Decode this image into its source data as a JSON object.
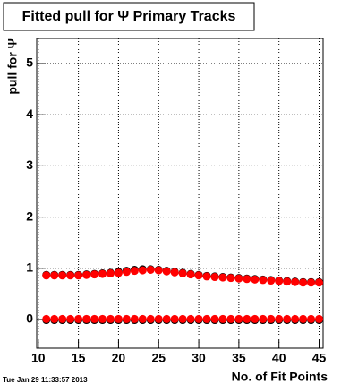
{
  "chart_data": {
    "type": "scatter",
    "title": "Fitted pull for  Ψ  Primary Tracks",
    "y_label": "pull for Ψ",
    "x_label": "No. of Fit Points",
    "footer": "Tue Jan 29 11:33:57 2013",
    "x": [
      11,
      12,
      13,
      14,
      15,
      16,
      17,
      18,
      19,
      20,
      21,
      22,
      23,
      24,
      25,
      26,
      27,
      28,
      29,
      30,
      31,
      32,
      33,
      34,
      35,
      36,
      37,
      38,
      39,
      40,
      41,
      42,
      43,
      44,
      45
    ],
    "series": [
      {
        "color": "#000000",
        "values": [
          0.87,
          0.87,
          0.87,
          0.87,
          0.87,
          0.88,
          0.89,
          0.9,
          0.91,
          0.93,
          0.95,
          0.97,
          0.98,
          0.98,
          0.97,
          0.95,
          0.93,
          0.91,
          0.89,
          0.87,
          0.85,
          0.84,
          0.83,
          0.82,
          0.81,
          0.8,
          0.79,
          0.78,
          0.77,
          0.76,
          0.75,
          0.74,
          0.73,
          0.73,
          0.73
        ]
      },
      {
        "color": "#ff0000",
        "values": [
          0.86,
          0.86,
          0.86,
          0.86,
          0.86,
          0.87,
          0.88,
          0.89,
          0.9,
          0.91,
          0.93,
          0.95,
          0.96,
          0.97,
          0.96,
          0.94,
          0.92,
          0.9,
          0.88,
          0.86,
          0.84,
          0.83,
          0.82,
          0.81,
          0.8,
          0.79,
          0.78,
          0.77,
          0.76,
          0.75,
          0.74,
          0.73,
          0.72,
          0.72,
          0.72
        ]
      },
      {
        "color": "#000000",
        "values": [
          -0.01,
          -0.01,
          -0.01,
          -0.01,
          -0.01,
          -0.01,
          -0.01,
          -0.01,
          -0.01,
          -0.01,
          -0.01,
          -0.01,
          -0.01,
          -0.01,
          -0.01,
          -0.01,
          -0.01,
          -0.01,
          -0.01,
          -0.01,
          -0.01,
          -0.01,
          -0.01,
          -0.01,
          -0.01,
          -0.01,
          -0.01,
          -0.01,
          -0.01,
          -0.01,
          -0.01,
          -0.01,
          -0.01,
          -0.01,
          -0.01
        ]
      },
      {
        "color": "#ff0000",
        "values": [
          0.01,
          0.01,
          0.01,
          0.01,
          0.01,
          0.01,
          0.01,
          0.01,
          0.01,
          0.01,
          0.01,
          0.01,
          0.01,
          0.01,
          0.01,
          0.01,
          0.01,
          0.01,
          0.01,
          0.01,
          0.01,
          0.01,
          0.01,
          0.01,
          0.01,
          0.01,
          0.01,
          0.01,
          0.01,
          0.01,
          0.01,
          0.01,
          0.01,
          0.01,
          0.01
        ]
      }
    ],
    "xlim": [
      9.8,
      45.5
    ],
    "ylim": [
      -0.56,
      5.49
    ],
    "xticks": [
      10,
      15,
      20,
      25,
      30,
      35,
      40,
      45
    ],
    "yticks": [
      0,
      1,
      2,
      3,
      4,
      5
    ],
    "grid": true
  }
}
